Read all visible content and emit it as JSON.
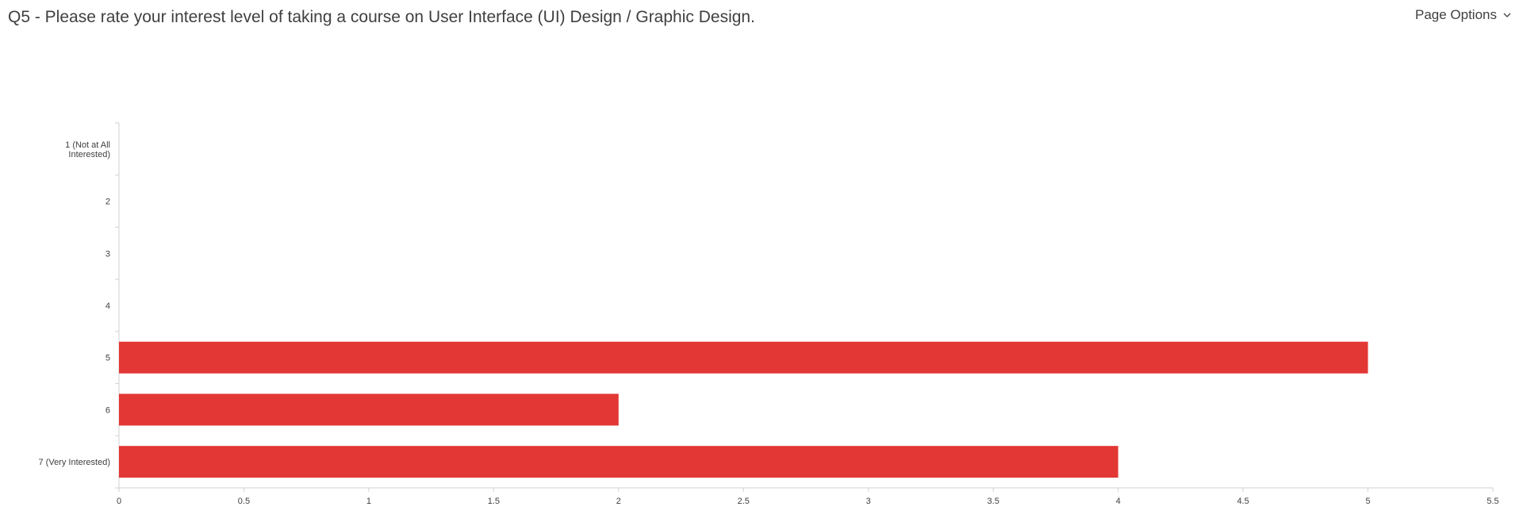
{
  "header": {
    "question_title": "Q5 - Please rate your interest level of taking a course on User Interface (UI) Design / Graphic Design.",
    "page_options_label": "Page Options"
  },
  "chart_data": {
    "type": "bar",
    "orientation": "horizontal",
    "categories": [
      [
        "1 (Not at All",
        "Interested)"
      ],
      [
        "2"
      ],
      [
        "3"
      ],
      [
        "4"
      ],
      [
        "5"
      ],
      [
        "6"
      ],
      [
        "7 (Very Interested)"
      ]
    ],
    "values": [
      0,
      0,
      0,
      0,
      5,
      2,
      4
    ],
    "xlim": [
      0,
      5.5
    ],
    "xticks": [
      "0",
      "0.5",
      "1",
      "1.5",
      "2",
      "2.5",
      "3",
      "3.5",
      "4",
      "4.5",
      "5",
      "5.5"
    ],
    "bar_color": "#e33735",
    "grid": false,
    "legend": "none"
  }
}
